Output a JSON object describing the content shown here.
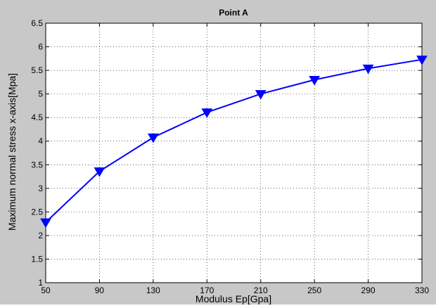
{
  "chart_data": {
    "type": "line",
    "title": "Point A",
    "xlabel": "Modulus Ep[Gpa]",
    "ylabel": "Maximum normal stress x-axis[Mpa]",
    "x": [
      50,
      90,
      130,
      170,
      210,
      250,
      290,
      330
    ],
    "series": [
      {
        "values": [
          2.28,
          3.36,
          4.08,
          4.61,
          5.0,
          5.3,
          5.54,
          5.73
        ],
        "color": "#0000ff",
        "marker": "triangle-down"
      }
    ],
    "xlim": [
      50,
      330
    ],
    "ylim": [
      1,
      6.5
    ],
    "xticks": [
      50,
      90,
      130,
      170,
      210,
      250,
      290,
      330
    ],
    "yticks": [
      1,
      1.5,
      2,
      2.5,
      3,
      3.5,
      4,
      4.5,
      5,
      5.5,
      6,
      6.5
    ],
    "grid": true,
    "background_color": "#c8c8c8",
    "plot_color": "#ffffff"
  }
}
